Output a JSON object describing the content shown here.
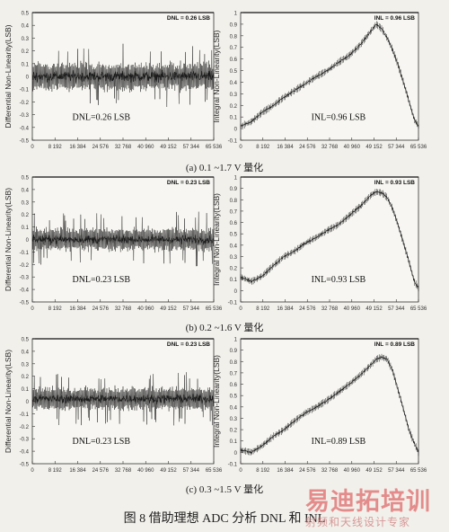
{
  "x_ticks": [
    "0",
    "8 192",
    "16 384",
    "24 576",
    "32 768",
    "40 960",
    "49 152",
    "57 344",
    "65 536"
  ],
  "dnl_y_ticks": [
    "-0.5",
    "-0.4",
    "-0.3",
    "-0.2",
    "-0.1",
    "0",
    "0.1",
    "0.2",
    "0.3",
    "0.4",
    "0.5"
  ],
  "inl_y_ticks": [
    "-0.1",
    "0",
    "0.1",
    "0.2",
    "0.3",
    "0.4",
    "0.5",
    "0.6",
    "0.7",
    "0.8",
    "0.9",
    "1"
  ],
  "captions": [
    "(a) 0.1 ~1.7 V 量化",
    "(b) 0.2 ~1.6 V 量化",
    "(c) 0.3 ~1.5 V 量化"
  ],
  "figure_caption": "图 8   借助理想 ADC 分析 DNL 和 INL",
  "watermark": {
    "main": "易迪拓培训",
    "sub": "射频和天线设计专家"
  },
  "colors": {
    "trace": "#1a1a1a",
    "watermark": "#e07474"
  },
  "chart_data": [
    {
      "type": "line",
      "panel": "a-dnl",
      "ylabel": "Differential Non-Linearity(LSB)",
      "legend": "DNL = 0.26 LSB",
      "annotation": "DNL=0.26 LSB",
      "x_range": [
        0,
        65536
      ],
      "ylim": [
        -0.5,
        0.5
      ],
      "grid": false,
      "band": {
        "center": 0.0,
        "core": 0.13,
        "peak": 0.26
      }
    },
    {
      "type": "line",
      "panel": "a-inl",
      "ylabel": "Integral Non-Linearity(LSB)",
      "legend": "INL = 0.96 LSB",
      "annotation": "INL=0.96 LSB",
      "x_range": [
        0,
        65536
      ],
      "ylim": [
        -0.1,
        1.0
      ],
      "grid": false,
      "x": [
        0,
        4000,
        8000,
        12000,
        16000,
        20000,
        24000,
        28000,
        32000,
        36000,
        40000,
        44000,
        48000,
        50000,
        52000,
        54000,
        56000,
        58000,
        60000,
        62000,
        64000,
        65536
      ],
      "y": [
        0.02,
        0.06,
        0.14,
        0.2,
        0.27,
        0.33,
        0.39,
        0.45,
        0.5,
        0.57,
        0.63,
        0.72,
        0.84,
        0.9,
        0.86,
        0.78,
        0.68,
        0.55,
        0.4,
        0.24,
        0.08,
        0.02
      ]
    },
    {
      "type": "line",
      "panel": "b-dnl",
      "ylabel": "Differential Non-Linearity(LSB)",
      "legend": "DNL = 0.23 LSB",
      "annotation": "DNL=0.23 LSB",
      "x_range": [
        0,
        65536
      ],
      "ylim": [
        -0.5,
        0.5
      ],
      "grid": false,
      "band": {
        "center": 0.0,
        "core": 0.11,
        "peak": 0.23
      }
    },
    {
      "type": "line",
      "panel": "b-inl",
      "ylabel": "Integral Non-Linearity(LSB)",
      "legend": "INL = 0.93 LSB",
      "annotation": "INL=0.93 LSB",
      "x_range": [
        0,
        65536
      ],
      "ylim": [
        -0.1,
        1.0
      ],
      "grid": false,
      "x": [
        0,
        4000,
        8000,
        12000,
        16000,
        20000,
        24000,
        28000,
        32000,
        36000,
        40000,
        44000,
        48000,
        50000,
        52000,
        54000,
        56000,
        58000,
        60000,
        62000,
        64000,
        65536
      ],
      "y": [
        0.12,
        0.08,
        0.13,
        0.22,
        0.3,
        0.35,
        0.42,
        0.47,
        0.53,
        0.58,
        0.66,
        0.74,
        0.84,
        0.87,
        0.86,
        0.82,
        0.72,
        0.58,
        0.42,
        0.26,
        0.08,
        0.02
      ]
    },
    {
      "type": "line",
      "panel": "c-dnl",
      "ylabel": "Differential Non-Linearity(LSB)",
      "legend": "DNL = 0.23 LSB",
      "annotation": "DNL=0.23 LSB",
      "x_range": [
        0,
        65536
      ],
      "ylim": [
        -0.5,
        0.5
      ],
      "grid": false,
      "band": {
        "center": 0.02,
        "core": 0.11,
        "peak": 0.23
      }
    },
    {
      "type": "line",
      "panel": "c-inl",
      "ylabel": "Integral Non-Linearity(LSB)",
      "legend": "INL = 0.89 LSB",
      "annotation": "INL=0.89 LSB",
      "x_range": [
        0,
        65536
      ],
      "ylim": [
        -0.1,
        1.0
      ],
      "grid": false,
      "x": [
        0,
        4000,
        8000,
        12000,
        16000,
        20000,
        24000,
        28000,
        32000,
        36000,
        40000,
        44000,
        48000,
        50000,
        52000,
        54000,
        56000,
        58000,
        60000,
        62000,
        64000,
        65536
      ],
      "y": [
        0.02,
        0.0,
        0.06,
        0.14,
        0.2,
        0.28,
        0.35,
        0.4,
        0.46,
        0.53,
        0.6,
        0.68,
        0.77,
        0.82,
        0.84,
        0.82,
        0.72,
        0.55,
        0.38,
        0.2,
        0.08,
        0.0
      ]
    }
  ]
}
